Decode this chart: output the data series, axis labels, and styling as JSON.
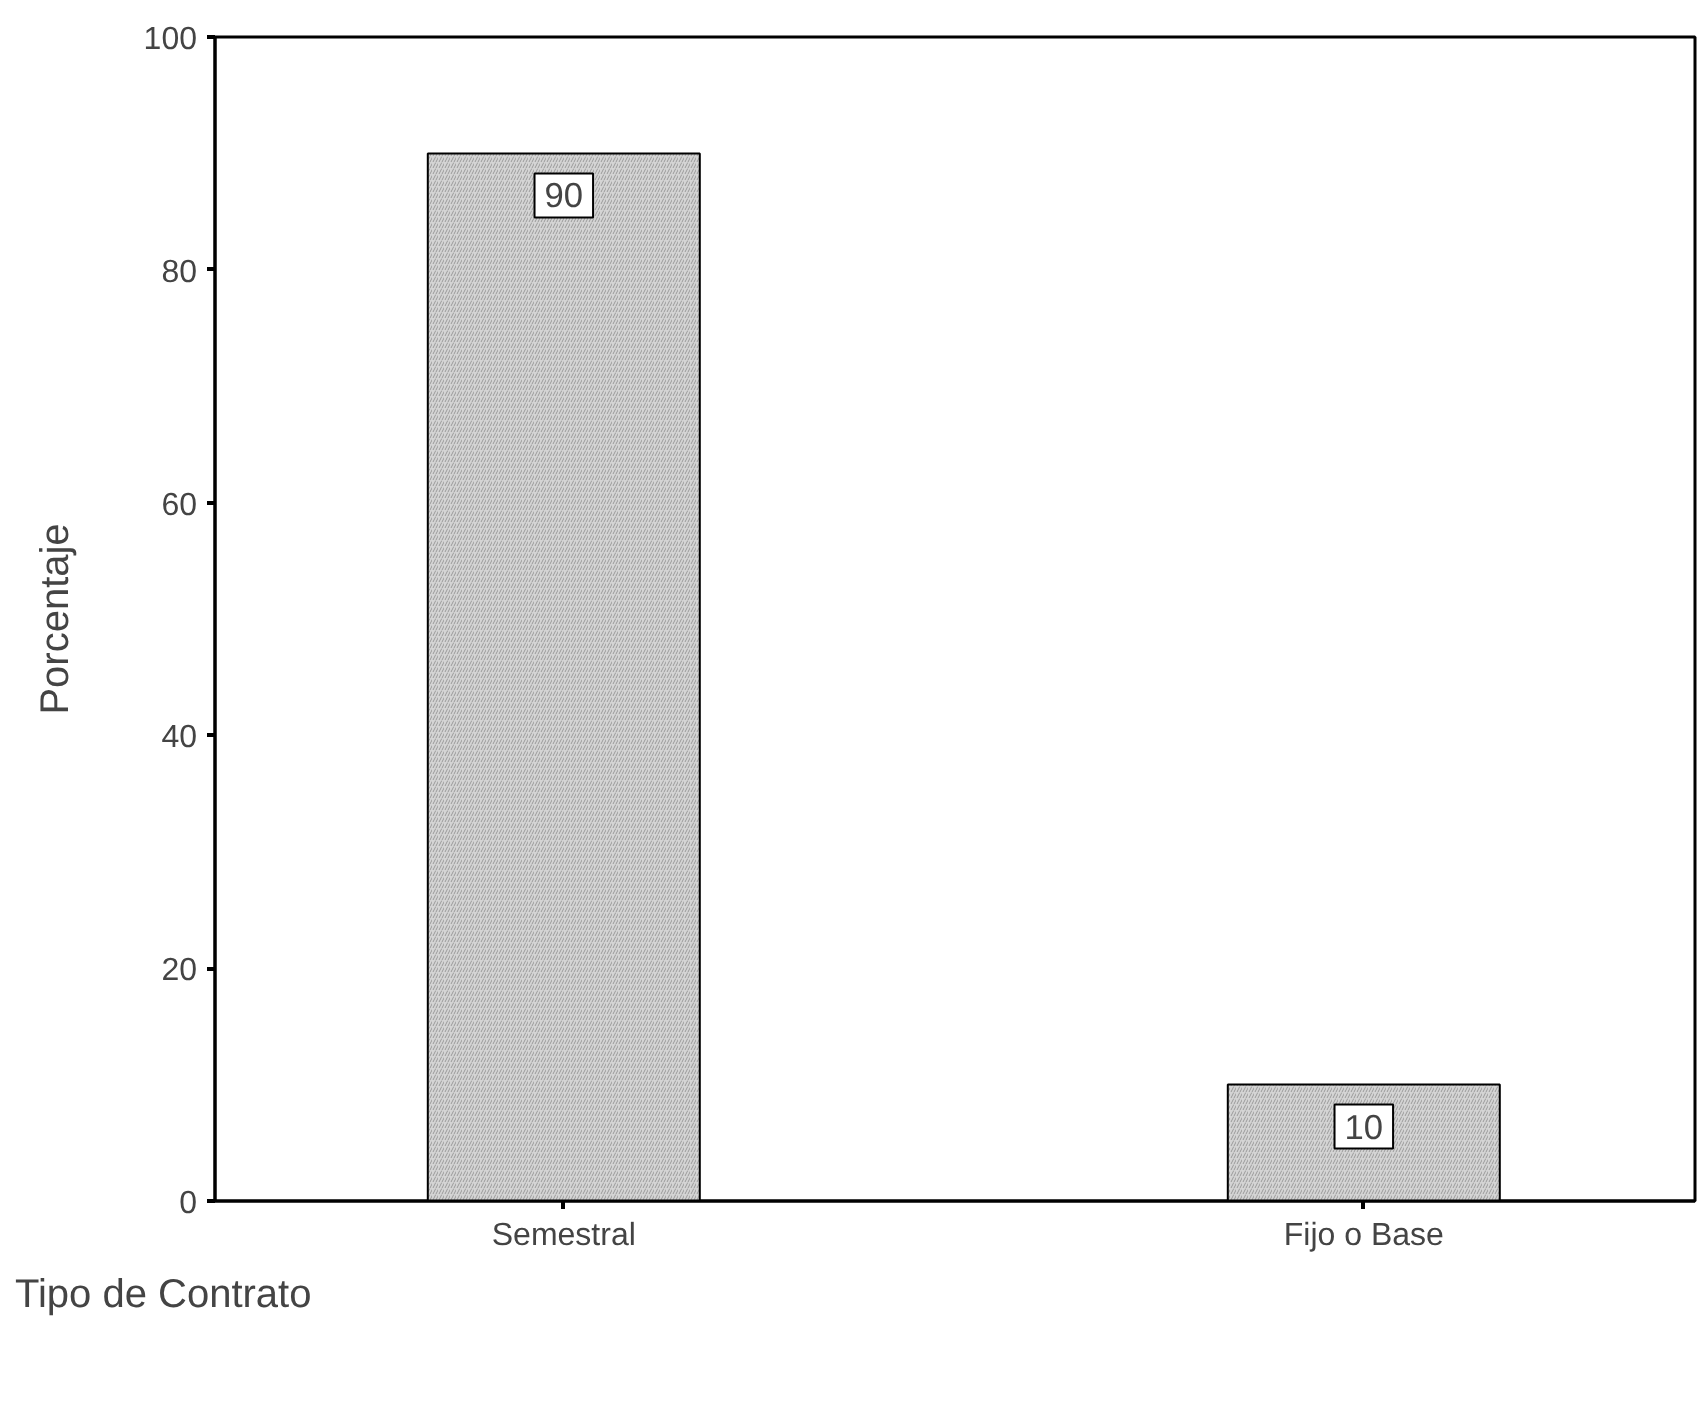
{
  "chart_data": {
    "type": "bar",
    "xlabel": "Tipo de Contrato",
    "ylabel": "Porcentaje",
    "categories": [
      "Semestral",
      "Fijo o Base"
    ],
    "values": [
      90,
      10
    ],
    "color": "#d4d4d4",
    "ylim": [
      0,
      100
    ],
    "yticks": [
      0,
      20,
      40,
      60,
      80,
      100
    ],
    "grid": false,
    "data_labels": true
  }
}
